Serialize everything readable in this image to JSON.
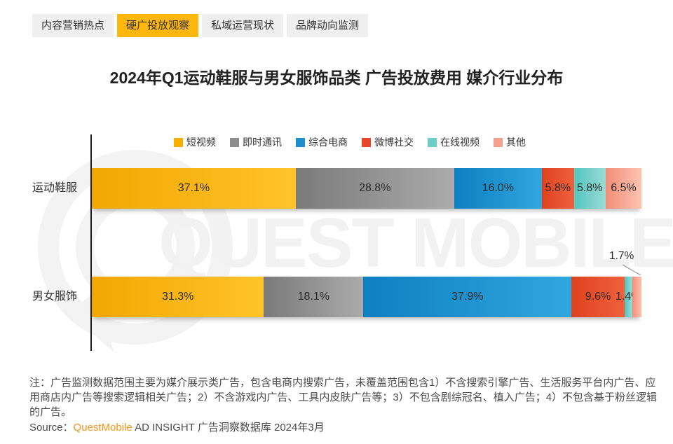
{
  "tabs": [
    {
      "label": "内容营销热点",
      "active": false
    },
    {
      "label": "硬广投放观察",
      "active": true
    },
    {
      "label": "私域运营现状",
      "active": false
    },
    {
      "label": "品牌动向监测",
      "active": false
    }
  ],
  "title": "2024年Q1运动鞋服与男女服饰品类 广告投放费用 媒介行业分布",
  "chart_data": {
    "type": "bar",
    "stacked": true,
    "orientation": "horizontal",
    "unit": "%",
    "xlim": [
      0,
      100
    ],
    "legend_position": "top",
    "categories": [
      "运动鞋服",
      "男女服饰"
    ],
    "series": [
      {
        "name": "短视频",
        "color": "#F7B000",
        "gradient": [
          "#F2A702",
          "#FFC329"
        ],
        "values": [
          37.1,
          31.3
        ]
      },
      {
        "name": "即时通讯",
        "color": "#8C8C8C",
        "gradient": [
          "#7A7A7A",
          "#ABABAB"
        ],
        "values": [
          28.8,
          18.1
        ]
      },
      {
        "name": "综合电商",
        "color": "#1E8FCC",
        "gradient": [
          "#0F7FC1",
          "#2FA7DE"
        ],
        "values": [
          16.0,
          37.9
        ]
      },
      {
        "name": "微博社交",
        "color": "#E8472A",
        "gradient": [
          "#DF421F",
          "#F0603C"
        ],
        "values": [
          5.8,
          9.6
        ]
      },
      {
        "name": "在线视频",
        "color": "#6FCCC6",
        "gradient": [
          "#54C5BF",
          "#99DBD5"
        ],
        "values": [
          5.8,
          1.4
        ]
      },
      {
        "name": "其他",
        "color": "#F5A08C",
        "gradient": [
          "#F28D77",
          "#FCC3B0"
        ],
        "values": [
          6.5,
          1.7
        ]
      }
    ]
  },
  "watermark": {
    "text": "QUEST MOBILE"
  },
  "note": "注：广告监测数据范围主要为媒介展示类广告，包含电商内搜索广告，未覆盖范围包含1）不含搜索引擎广告、生活服务平台内广告、应用商店内广告等搜索逻辑相关广告；2）不含游戏内广告、工具内皮肤广告等；3）不包含剧综冠名、植入广告；4）不包含基于粉丝逻辑的广告。",
  "source": {
    "prefix": "Source：",
    "brand": "QuestMobile",
    "rest": " AD INSIGHT 广告洞察数据库 2024年3月"
  }
}
